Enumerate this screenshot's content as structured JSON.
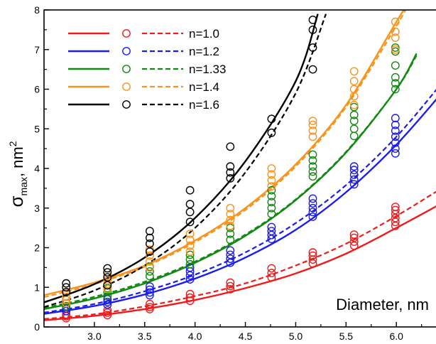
{
  "chart_data": {
    "type": "scatter",
    "title": "",
    "xlabel": "Diameter, nm",
    "ylabel_main": "σ",
    "ylabel_sub": "max",
    "ylabel_unit": ", nm",
    "ylabel_sup": "2",
    "xlim": [
      2.5,
      6.45
    ],
    "ylim": [
      0,
      8
    ],
    "x_ticks": [
      "3.0",
      "3.5",
      "4.0",
      "4.5",
      "5.0",
      "5.5",
      "6.0"
    ],
    "y_ticks": [
      "0",
      "1",
      "2",
      "3",
      "4",
      "5",
      "6",
      "7",
      "8"
    ],
    "legend_position": "top-left",
    "series": [
      {
        "name": "n=1.0",
        "color": "#ee1c1c",
        "solid_curve": {
          "x": [
            2.5,
            3.0,
            3.5,
            4.0,
            4.5,
            5.0,
            5.5,
            6.0,
            6.45
          ],
          "y": [
            0.17,
            0.28,
            0.45,
            0.68,
            0.98,
            1.35,
            1.85,
            2.5,
            3.12
          ]
        },
        "dashed_curve": {
          "x": [
            2.5,
            3.0,
            3.5,
            4.0,
            4.5,
            5.0,
            5.5,
            6.0,
            6.45
          ],
          "y": [
            0.2,
            0.32,
            0.52,
            0.78,
            1.1,
            1.55,
            2.1,
            2.8,
            3.5
          ]
        },
        "points": [
          {
            "x": 2.72,
            "y": [
              0.22,
              0.27,
              0.31
            ]
          },
          {
            "x": 3.13,
            "y": [
              0.3,
              0.36,
              0.42
            ]
          },
          {
            "x": 3.55,
            "y": [
              0.45,
              0.5,
              0.58
            ]
          },
          {
            "x": 3.95,
            "y": [
              0.66,
              0.74,
              0.83
            ]
          },
          {
            "x": 4.35,
            "y": [
              0.95,
              1.03,
              1.12
            ]
          },
          {
            "x": 4.76,
            "y": [
              1.25,
              1.36,
              1.48
            ]
          },
          {
            "x": 5.17,
            "y": [
              1.6,
              1.7,
              1.8,
              1.88
            ]
          },
          {
            "x": 5.58,
            "y": [
              2.05,
              2.15,
              2.25,
              2.33
            ]
          },
          {
            "x": 5.99,
            "y": [
              2.55,
              2.65,
              2.75,
              2.85,
              2.95,
              3.03
            ]
          }
        ]
      },
      {
        "name": "n=1.2",
        "color": "#1c1ced",
        "solid_curve": {
          "x": [
            2.5,
            3.0,
            3.5,
            4.0,
            4.5,
            5.0,
            5.5,
            6.0,
            6.45
          ],
          "y": [
            0.33,
            0.53,
            0.82,
            1.22,
            1.75,
            2.45,
            3.4,
            4.6,
            5.9
          ]
        },
        "dashed_curve": {
          "x": [
            2.5,
            3.0,
            3.5,
            4.0,
            4.5,
            5.0,
            5.5,
            6.0,
            6.45
          ],
          "y": [
            0.36,
            0.58,
            0.9,
            1.32,
            1.88,
            2.62,
            3.58,
            4.8,
            6.15
          ]
        },
        "points": [
          {
            "x": 2.72,
            "y": [
              0.4,
              0.46,
              0.52
            ]
          },
          {
            "x": 3.13,
            "y": [
              0.56,
              0.63,
              0.7,
              0.78
            ]
          },
          {
            "x": 3.55,
            "y": [
              0.8,
              0.87,
              0.94,
              1.02
            ]
          },
          {
            "x": 3.95,
            "y": [
              1.2,
              1.3,
              1.4,
              1.5
            ]
          },
          {
            "x": 4.35,
            "y": [
              1.62,
              1.72,
              1.82,
              1.93
            ]
          },
          {
            "x": 4.76,
            "y": [
              2.22,
              2.32,
              2.42,
              2.52
            ]
          },
          {
            "x": 5.17,
            "y": [
              2.78,
              2.9,
              3.0,
              3.12,
              3.24
            ]
          },
          {
            "x": 5.58,
            "y": [
              3.6,
              3.72,
              3.84,
              3.96,
              4.05
            ]
          },
          {
            "x": 5.99,
            "y": [
              4.38,
              4.5,
              4.65,
              4.8,
              4.95,
              5.1,
              5.27
            ]
          }
        ]
      },
      {
        "name": "n=1.33",
        "color": "#128a12",
        "solid_curve": {
          "x": [
            2.5,
            3.0,
            3.5,
            4.0,
            4.5,
            5.0,
            5.5,
            6.0,
            6.2
          ],
          "y": [
            0.45,
            0.72,
            1.1,
            1.62,
            2.3,
            3.2,
            4.4,
            6.0,
            6.9
          ]
        },
        "dashed_curve": {
          "x": [
            2.5,
            3.0,
            3.5,
            4.0,
            4.5,
            5.0,
            5.5,
            6.0,
            6.2
          ],
          "y": [
            0.48,
            0.76,
            1.14,
            1.65,
            2.33,
            3.22,
            4.42,
            6.0,
            6.85
          ]
        },
        "points": [
          {
            "x": 2.72,
            "y": [
              0.52,
              0.6,
              0.68
            ]
          },
          {
            "x": 3.13,
            "y": [
              0.78,
              0.88,
              0.98,
              1.08
            ]
          },
          {
            "x": 3.55,
            "y": [
              1.28,
              1.4,
              1.52
            ]
          },
          {
            "x": 3.95,
            "y": [
              1.58,
              1.7,
              1.82
            ]
          },
          {
            "x": 4.35,
            "y": [
              2.2,
              2.35,
              2.5
            ]
          },
          {
            "x": 4.76,
            "y": [
              2.85,
              3.0,
              3.15,
              3.3,
              3.45
            ]
          },
          {
            "x": 5.17,
            "y": [
              3.8,
              3.92,
              4.05,
              4.2,
              4.35
            ]
          },
          {
            "x": 5.58,
            "y": [
              4.82,
              5.0,
              5.2,
              5.35,
              5.55
            ]
          },
          {
            "x": 5.99,
            "y": [
              6.0,
              6.15,
              6.3,
              6.6,
              6.95,
              7.05
            ]
          }
        ]
      },
      {
        "name": "n=1.4",
        "color": "#f7941d",
        "solid_curve": {
          "x": [
            2.5,
            3.0,
            3.5,
            4.0,
            4.5,
            5.0,
            5.5,
            6.0,
            6.1
          ],
          "y": [
            0.8,
            1.12,
            1.55,
            2.18,
            3.0,
            4.1,
            5.6,
            7.7,
            8.1
          ]
        },
        "dashed_curve": {
          "x": [
            2.5,
            3.0,
            3.5,
            4.0,
            4.5,
            5.0,
            5.5,
            6.0,
            6.1
          ],
          "y": [
            0.75,
            1.08,
            1.52,
            2.14,
            2.95,
            4.05,
            5.55,
            7.6,
            8.05
          ]
        },
        "points": [
          {
            "x": 2.72,
            "y": [
              0.6,
              0.68,
              0.76
            ]
          },
          {
            "x": 3.13,
            "y": [
              0.96,
              1.08,
              1.18,
              1.3
            ]
          },
          {
            "x": 3.55,
            "y": [
              1.5,
              1.65,
              1.8,
              1.95
            ]
          },
          {
            "x": 3.95,
            "y": [
              1.9,
              2.05,
              2.2,
              2.35
            ]
          },
          {
            "x": 4.35,
            "y": [
              2.55,
              2.7,
              2.85,
              3.0
            ]
          },
          {
            "x": 4.76,
            "y": [
              3.55,
              3.7,
              3.85,
              4.0
            ]
          },
          {
            "x": 5.17,
            "y": [
              4.8,
              4.95,
              5.1,
              5.2
            ]
          },
          {
            "x": 5.58,
            "y": [
              5.6,
              5.82,
              6.0,
              6.2,
              6.45
            ]
          },
          {
            "x": 5.99,
            "y": [
              7.0,
              7.3,
              7.45,
              7.7
            ]
          }
        ]
      },
      {
        "name": "n=1.6",
        "color": "#000000",
        "solid_curve": {
          "x": [
            2.5,
            3.0,
            3.5,
            4.0,
            4.5,
            5.0,
            5.22
          ],
          "y": [
            0.62,
            1.08,
            1.75,
            2.75,
            4.18,
            6.2,
            7.9
          ]
        },
        "dashed_curve": {
          "x": [
            2.5,
            3.0,
            3.5,
            4.0,
            4.5,
            5.0,
            5.3
          ],
          "y": [
            0.5,
            0.92,
            1.55,
            2.5,
            3.9,
            5.9,
            7.9
          ]
        },
        "points": [
          {
            "x": 2.72,
            "y": [
              0.88,
              1.0,
              1.1
            ]
          },
          {
            "x": 3.13,
            "y": [
              1.05,
              1.25,
              1.38,
              1.48
            ]
          },
          {
            "x": 3.55,
            "y": [
              1.9,
              2.1,
              2.25,
              2.42
            ]
          },
          {
            "x": 3.95,
            "y": [
              2.65,
              2.9,
              3.1,
              3.45
            ]
          },
          {
            "x": 4.35,
            "y": [
              3.75,
              3.9,
              4.05,
              4.55
            ]
          },
          {
            "x": 4.76,
            "y": [
              4.9,
              5.25,
              5.7,
              6.05
            ]
          },
          {
            "x": 5.17,
            "y": [
              6.5,
              7.05,
              7.5,
              7.75
            ]
          }
        ]
      }
    ]
  }
}
